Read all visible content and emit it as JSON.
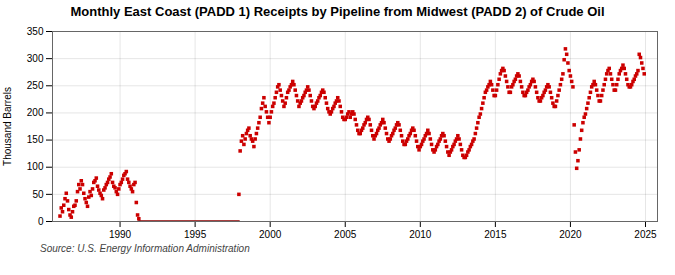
{
  "chart_data": {
    "type": "scatter",
    "title": "Monthly East Coast (PADD 1) Receipts by Pipeline from Midwest (PADD 2) of Crude Oil",
    "ylabel": "Thousand Barrels",
    "source": "Source: U.S. Energy Information Administration",
    "xlim": [
      1985.5,
      2025.8
    ],
    "xticks": [
      1990,
      1995,
      2000,
      2005,
      2010,
      2015,
      2020,
      2025
    ],
    "ylim": [
      0,
      350
    ],
    "yticks": [
      0,
      50,
      100,
      150,
      200,
      250,
      300,
      350
    ],
    "grid": true,
    "series": [
      {
        "type": "scatter",
        "color": "#cc0000",
        "marker": "square",
        "x": [
          1986.0,
          1986.083,
          1986.167,
          1986.25,
          1986.333,
          1986.417,
          1986.5,
          1986.583,
          1986.667,
          1986.75,
          1986.833,
          1986.917,
          1987.0,
          1987.083,
          1987.167,
          1987.25,
          1987.333,
          1987.417,
          1987.5,
          1987.583,
          1987.667,
          1987.75,
          1987.833,
          1987.917,
          1988.0,
          1988.083,
          1988.167,
          1988.25,
          1988.333,
          1988.417,
          1988.5,
          1988.583,
          1988.667,
          1988.75,
          1988.833,
          1988.917,
          1989.0,
          1989.083,
          1989.167,
          1989.25,
          1989.333,
          1989.417,
          1989.5,
          1989.583,
          1989.667,
          1989.75,
          1989.833,
          1989.917,
          1990.0,
          1990.083,
          1990.167,
          1990.25,
          1990.333,
          1990.417,
          1990.5,
          1990.583,
          1990.667,
          1990.75,
          1990.833,
          1990.917,
          1991.0,
          1991.083,
          1991.167,
          1991.25,
          1997.917,
          1998.0,
          1998.083,
          1998.167,
          1998.25,
          1998.333,
          1998.417,
          1998.5,
          1998.583,
          1998.667,
          1998.75,
          1998.833,
          1998.917,
          1999.0,
          1999.083,
          1999.167,
          1999.25,
          1999.333,
          1999.417,
          1999.5,
          1999.583,
          1999.667,
          1999.75,
          1999.833,
          1999.917,
          2000.0,
          2000.083,
          2000.167,
          2000.25,
          2000.333,
          2000.417,
          2000.5,
          2000.583,
          2000.667,
          2000.75,
          2000.833,
          2000.917,
          2001.0,
          2001.083,
          2001.167,
          2001.25,
          2001.333,
          2001.417,
          2001.5,
          2001.583,
          2001.667,
          2001.75,
          2001.833,
          2001.917,
          2002.0,
          2002.083,
          2002.167,
          2002.25,
          2002.333,
          2002.417,
          2002.5,
          2002.583,
          2002.667,
          2002.75,
          2002.833,
          2002.917,
          2003.0,
          2003.083,
          2003.167,
          2003.25,
          2003.333,
          2003.417,
          2003.5,
          2003.583,
          2003.667,
          2003.75,
          2003.833,
          2003.917,
          2004.0,
          2004.083,
          2004.167,
          2004.25,
          2004.333,
          2004.417,
          2004.5,
          2004.583,
          2004.667,
          2004.75,
          2004.833,
          2004.917,
          2005.0,
          2005.083,
          2005.167,
          2005.25,
          2005.333,
          2005.417,
          2005.5,
          2005.583,
          2005.667,
          2005.75,
          2005.833,
          2005.917,
          2006.0,
          2006.083,
          2006.167,
          2006.25,
          2006.333,
          2006.417,
          2006.5,
          2006.583,
          2006.667,
          2006.75,
          2006.833,
          2006.917,
          2007.0,
          2007.083,
          2007.167,
          2007.25,
          2007.333,
          2007.417,
          2007.5,
          2007.583,
          2007.667,
          2007.75,
          2007.833,
          2007.917,
          2008.0,
          2008.083,
          2008.167,
          2008.25,
          2008.333,
          2008.417,
          2008.5,
          2008.583,
          2008.667,
          2008.75,
          2008.833,
          2008.917,
          2009.0,
          2009.083,
          2009.167,
          2009.25,
          2009.333,
          2009.417,
          2009.5,
          2009.583,
          2009.667,
          2009.75,
          2009.833,
          2009.917,
          2010.0,
          2010.083,
          2010.167,
          2010.25,
          2010.333,
          2010.417,
          2010.5,
          2010.583,
          2010.667,
          2010.75,
          2010.833,
          2010.917,
          2011.0,
          2011.083,
          2011.167,
          2011.25,
          2011.333,
          2011.417,
          2011.5,
          2011.583,
          2011.667,
          2011.75,
          2011.833,
          2011.917,
          2012.0,
          2012.083,
          2012.167,
          2012.25,
          2012.333,
          2012.417,
          2012.5,
          2012.583,
          2012.667,
          2012.75,
          2012.833,
          2012.917,
          2013.0,
          2013.083,
          2013.167,
          2013.25,
          2013.333,
          2013.417,
          2013.5,
          2013.583,
          2013.667,
          2013.75,
          2013.833,
          2013.917,
          2014.0,
          2014.083,
          2014.167,
          2014.25,
          2014.333,
          2014.417,
          2014.5,
          2014.583,
          2014.667,
          2014.75,
          2014.833,
          2014.917,
          2015.0,
          2015.083,
          2015.167,
          2015.25,
          2015.333,
          2015.417,
          2015.5,
          2015.583,
          2015.667,
          2015.75,
          2015.833,
          2015.917,
          2016.0,
          2016.083,
          2016.167,
          2016.25,
          2016.333,
          2016.417,
          2016.5,
          2016.583,
          2016.667,
          2016.75,
          2016.833,
          2016.917,
          2017.0,
          2017.083,
          2017.167,
          2017.25,
          2017.333,
          2017.417,
          2017.5,
          2017.583,
          2017.667,
          2017.75,
          2017.833,
          2017.917,
          2018.0,
          2018.083,
          2018.167,
          2018.25,
          2018.333,
          2018.417,
          2018.5,
          2018.583,
          2018.667,
          2018.75,
          2018.833,
          2018.917,
          2019.0,
          2019.083,
          2019.167,
          2019.25,
          2019.333,
          2019.417,
          2019.5,
          2019.583,
          2019.667,
          2019.75,
          2019.833,
          2019.917,
          2020.0,
          2020.083,
          2020.167,
          2020.25,
          2020.333,
          2020.417,
          2020.5,
          2020.583,
          2020.667,
          2020.75,
          2020.833,
          2020.917,
          2021.0,
          2021.083,
          2021.167,
          2021.25,
          2021.333,
          2021.417,
          2021.5,
          2021.583,
          2021.667,
          2021.75,
          2021.833,
          2021.917,
          2022.0,
          2022.083,
          2022.167,
          2022.25,
          2022.333,
          2022.417,
          2022.5,
          2022.583,
          2022.667,
          2022.75,
          2022.833,
          2022.917,
          2023.0,
          2023.083,
          2023.167,
          2023.25,
          2023.333,
          2023.417,
          2023.5,
          2023.583,
          2023.667,
          2023.75,
          2023.833,
          2023.917,
          2024.0,
          2024.083,
          2024.167,
          2024.25,
          2024.333,
          2024.417,
          2024.5,
          2024.583,
          2024.667,
          2024.75,
          2024.833,
          2024.917
        ],
        "values": [
          10,
          25,
          18,
          30,
          42,
          52,
          38,
          22,
          12,
          8,
          18,
          28,
          30,
          38,
          55,
          68,
          60,
          75,
          68,
          52,
          42,
          35,
          28,
          45,
          55,
          48,
          60,
          72,
          75,
          80,
          65,
          58,
          52,
          48,
          42,
          58,
          62,
          68,
          72,
          78,
          82,
          88,
          72,
          65,
          62,
          55,
          50,
          60,
          68,
          72,
          78,
          85,
          88,
          92,
          78,
          72,
          65,
          60,
          55,
          68,
          72,
          35,
          12,
          5,
          50,
          130,
          148,
          158,
          142,
          152,
          162,
          168,
          172,
          158,
          152,
          148,
          138,
          152,
          162,
          172,
          182,
          192,
          208,
          218,
          228,
          212,
          202,
          192,
          182,
          192,
          202,
          212,
          218,
          228,
          238,
          248,
          252,
          242,
          232,
          222,
          212,
          218,
          228,
          238,
          242,
          248,
          252,
          258,
          252,
          242,
          232,
          222,
          212,
          218,
          222,
          228,
          232,
          238,
          242,
          248,
          242,
          232,
          222,
          212,
          208,
          212,
          218,
          222,
          228,
          232,
          238,
          242,
          238,
          228,
          218,
          208,
          202,
          198,
          202,
          208,
          212,
          218,
          222,
          228,
          222,
          212,
          202,
          192,
          188,
          188,
          192,
          198,
          202,
          192,
          198,
          202,
          198,
          188,
          178,
          168,
          162,
          162,
          168,
          172,
          178,
          182,
          188,
          192,
          188,
          178,
          168,
          158,
          152,
          158,
          162,
          168,
          172,
          178,
          182,
          188,
          182,
          172,
          162,
          152,
          148,
          152,
          158,
          162,
          168,
          172,
          178,
          182,
          178,
          168,
          158,
          148,
          142,
          142,
          148,
          152,
          158,
          162,
          168,
          172,
          168,
          158,
          148,
          138,
          132,
          138,
          142,
          148,
          152,
          158,
          162,
          168,
          162,
          152,
          142,
          132,
          128,
          132,
          138,
          142,
          148,
          152,
          158,
          162,
          158,
          148,
          138,
          128,
          122,
          128,
          132,
          138,
          142,
          148,
          152,
          158,
          152,
          142,
          132,
          122,
          118,
          118,
          122,
          128,
          132,
          138,
          142,
          148,
          152,
          162,
          172,
          182,
          192,
          198,
          208,
          218,
          228,
          238,
          242,
          248,
          252,
          258,
          252,
          242,
          232,
          232,
          242,
          252,
          262,
          272,
          278,
          282,
          278,
          268,
          258,
          248,
          238,
          238,
          248,
          252,
          258,
          262,
          268,
          272,
          268,
          258,
          248,
          238,
          232,
          232,
          238,
          242,
          248,
          252,
          258,
          262,
          258,
          248,
          238,
          228,
          222,
          222,
          228,
          232,
          238,
          242,
          248,
          252,
          248,
          238,
          228,
          218,
          212,
          212,
          222,
          232,
          242,
          252,
          262,
          272,
          298,
          318,
          308,
          292,
          278,
          268,
          258,
          248,
          178,
          128,
          98,
          112,
          132,
          152,
          168,
          182,
          192,
          198,
          208,
          218,
          228,
          238,
          248,
          252,
          258,
          252,
          242,
          232,
          222,
          222,
          232,
          242,
          252,
          262,
          272,
          278,
          282,
          272,
          262,
          252,
          242,
          242,
          252,
          262,
          272,
          278,
          282,
          288,
          282,
          272,
          262,
          252,
          248,
          248,
          252,
          258,
          262,
          268,
          272,
          278,
          308,
          302,
          292,
          282,
          272
        ]
      },
      {
        "type": "line",
        "color": "#8b0000",
        "line_style": "solid",
        "x": [
          1991.25,
          1997.917
        ],
        "values": [
          0,
          0
        ]
      }
    ]
  }
}
